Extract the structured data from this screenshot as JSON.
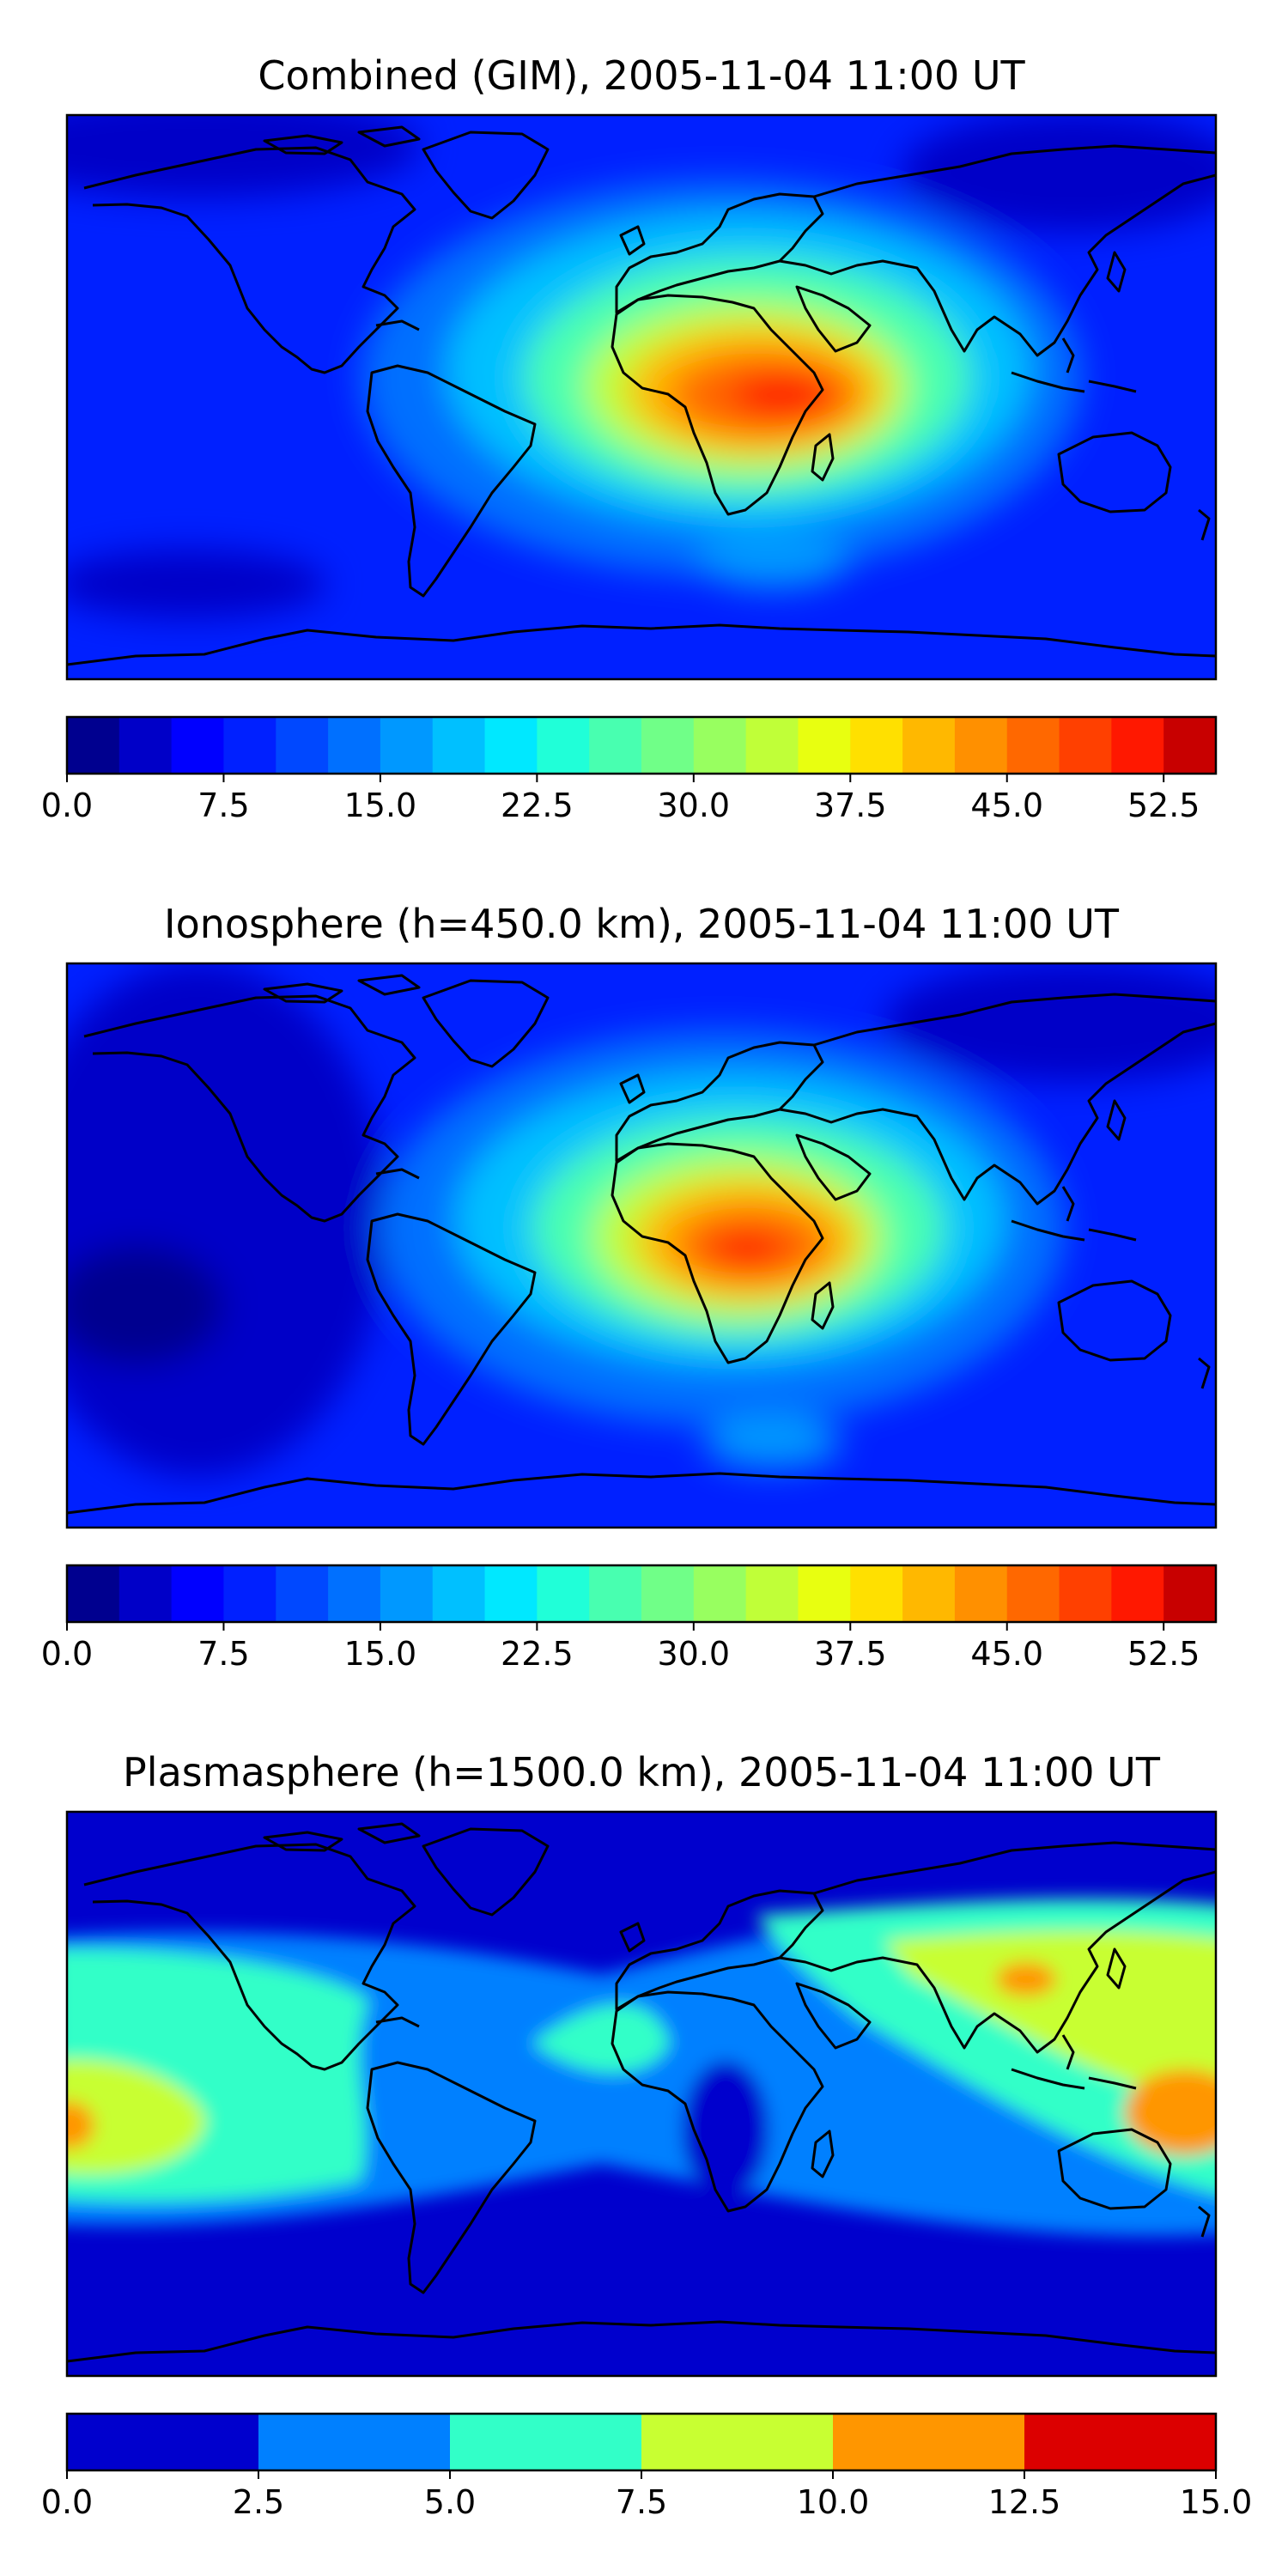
{
  "chart_data": [
    {
      "type": "heatmap",
      "title": "Combined (GIM), 2005-11-04 11:00 UT",
      "colorbar": {
        "levels": [
          0.0,
          2.5,
          5.0,
          7.5,
          10.0,
          12.5,
          15.0,
          17.5,
          20.0,
          22.5,
          25.0,
          27.5,
          30.0,
          32.5,
          35.0,
          37.5,
          40.0,
          42.5,
          45.0,
          47.5,
          50.0,
          52.5,
          55.0
        ],
        "ticks": [
          "0.0",
          "7.5",
          "15.0",
          "22.5",
          "30.0",
          "37.5",
          "45.0",
          "52.5"
        ],
        "range": [
          0.0,
          55.0
        ]
      },
      "features": {
        "maximum_region": "central Africa",
        "max_value_approx": 50.0,
        "background_value_approx": 7.5
      }
    },
    {
      "type": "heatmap",
      "title": "Ionosphere  (h=450.0 km), 2005-11-04 11:00 UT",
      "colorbar": {
        "levels": [
          0.0,
          2.5,
          5.0,
          7.5,
          10.0,
          12.5,
          15.0,
          17.5,
          20.0,
          22.5,
          25.0,
          27.5,
          30.0,
          32.5,
          35.0,
          37.5,
          40.0,
          42.5,
          45.0,
          47.5,
          50.0,
          52.5,
          55.0
        ],
        "ticks": [
          "0.0",
          "7.5",
          "15.0",
          "22.5",
          "30.0",
          "37.5",
          "45.0",
          "52.5"
        ],
        "range": [
          0.0,
          55.0
        ]
      },
      "features": {
        "maximum_region": "central Africa",
        "max_value_approx": 47.5,
        "background_value_approx": 5.0
      }
    },
    {
      "type": "heatmap",
      "title": "Plasmasphere (h=1500.0 km), 2005-11-04 11:00 UT",
      "colorbar": {
        "levels": [
          0.0,
          2.5,
          5.0,
          7.5,
          10.0,
          12.5,
          15.0
        ],
        "ticks": [
          "0.0",
          "2.5",
          "5.0",
          "7.5",
          "10.0",
          "12.5",
          "15.0"
        ],
        "range": [
          0.0,
          15.0
        ]
      },
      "features": {
        "maximum_region": "western Pacific / eastern Pacific",
        "max_value_approx": 12.5,
        "background_value_approx": 2.5
      }
    }
  ],
  "colors": {
    "jet22": [
      "#00008f",
      "#0000c8",
      "#0000ff",
      "#0020ff",
      "#0048ff",
      "#0070ff",
      "#0098ff",
      "#00c0ff",
      "#00e8ff",
      "#20ffd8",
      "#48ffb0",
      "#70ff88",
      "#98ff60",
      "#c0ff38",
      "#e8ff10",
      "#ffe000",
      "#ffb800",
      "#ff9000",
      "#ff6800",
      "#ff4000",
      "#ff1800",
      "#c80000"
    ],
    "jet22_last": "#8f0000",
    "plasma6": [
      "#0000cd",
      "#0080ff",
      "#32ffc8",
      "#c8ff32",
      "#ff9600",
      "#dc0000"
    ]
  }
}
